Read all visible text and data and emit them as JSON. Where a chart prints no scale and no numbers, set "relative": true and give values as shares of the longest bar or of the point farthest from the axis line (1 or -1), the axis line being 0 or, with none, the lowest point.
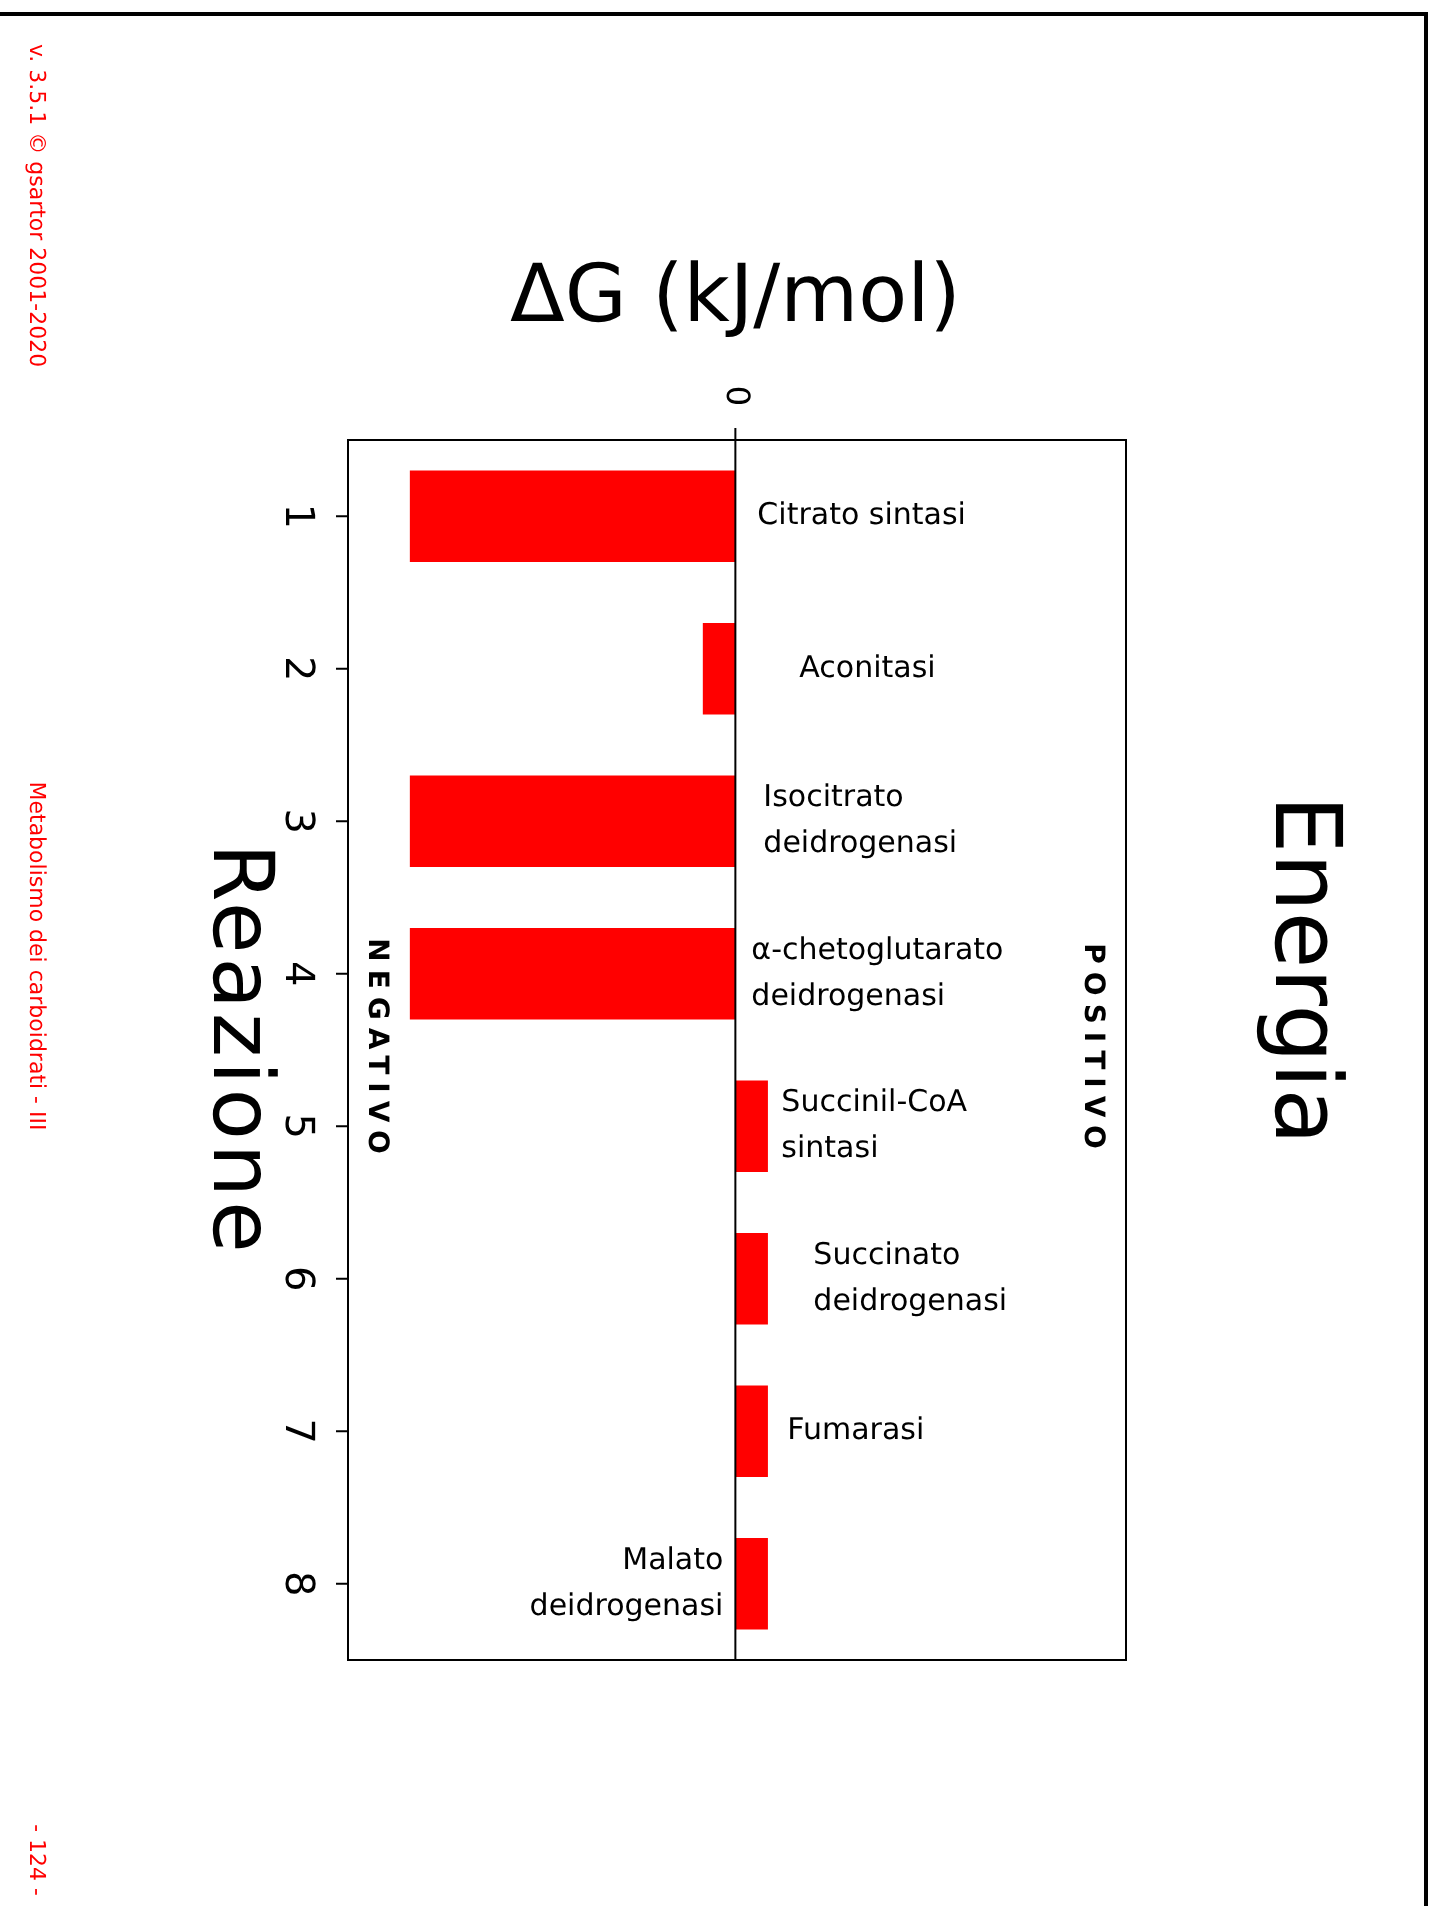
{
  "chart_data": {
    "type": "bar",
    "orientation": "horizontal",
    "relative": true,
    "title": "ΔG (kJ/mol)",
    "ylabel": "Reazione",
    "categories": [
      "1",
      "2",
      "3",
      "4",
      "5",
      "6",
      "7",
      "8"
    ],
    "values": [
      -1,
      -0.1,
      -1,
      -1,
      0.1,
      0.1,
      0.1,
      0.1
    ],
    "color": "#ff0000",
    "annotations": [
      "0",
      "NEGATIVO",
      "POSITIVO",
      "Citrato sintasi",
      "Aconitasi",
      "Isocitrato deidrogenasi",
      "α-chetoglutarato deidrogenasi",
      "Succinil-CoA sintasi",
      "Succinato deidrogenasi",
      "Fumarasi",
      "Malato deidrogenasi",
      "Energia",
      "v. 3.5.1 © gsartor 2001-2020",
      "Metabolismo dei carboidrati - III",
      "- 124 -"
    ]
  }
}
